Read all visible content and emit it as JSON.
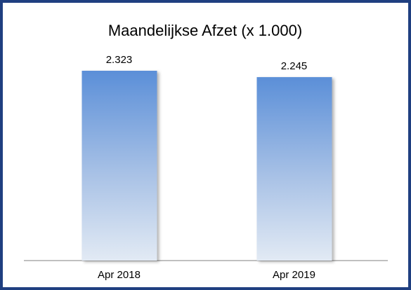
{
  "chart_data": {
    "type": "bar",
    "title": "Maandelijkse Afzet (x 1.000)",
    "categories": [
      "Apr 2018",
      "Apr 2019"
    ],
    "values": [
      2323,
      2245
    ],
    "value_labels": [
      "2.323",
      "2.245"
    ],
    "color": "#5b8fd8"
  }
}
